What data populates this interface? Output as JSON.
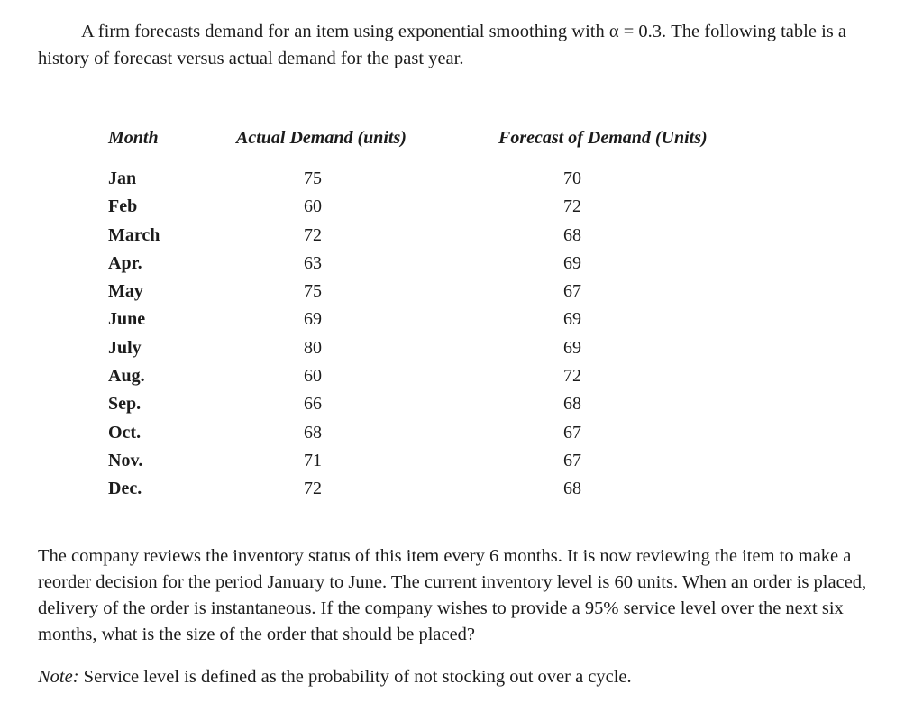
{
  "document": {
    "intro_text": "A firm forecasts demand for an item using exponential smoothing with α = 0.3. The following table is a history of forecast versus actual demand for the past year.",
    "table": {
      "headers": [
        "Month",
        "Actual Demand (units)",
        "Forecast of Demand (Units)"
      ],
      "rows": [
        {
          "month": "Jan",
          "actual": "75",
          "forecast": "70"
        },
        {
          "month": "Feb",
          "actual": "60",
          "forecast": "72"
        },
        {
          "month": "March",
          "actual": "72",
          "forecast": "68"
        },
        {
          "month": "Apr.",
          "actual": "63",
          "forecast": "69"
        },
        {
          "month": "May",
          "actual": "75",
          "forecast": "67"
        },
        {
          "month": "June",
          "actual": "69",
          "forecast": "69"
        },
        {
          "month": "July",
          "actual": "80",
          "forecast": "69"
        },
        {
          "month": "Aug.",
          "actual": "60",
          "forecast": "72"
        },
        {
          "month": "Sep.",
          "actual": "66",
          "forecast": "68"
        },
        {
          "month": "Oct.",
          "actual": "68",
          "forecast": "67"
        },
        {
          "month": "Nov.",
          "actual": "71",
          "forecast": "67"
        },
        {
          "month": "Dec.",
          "actual": "72",
          "forecast": "68"
        }
      ]
    },
    "question_text": "The company reviews the inventory status of this item every 6 months. It is now reviewing the item to make a reorder decision for the period January to June. The current inventory level is 60 units. When an order is placed, delivery of the order is instantaneous. If the company wishes to provide a 95% service level over the next six months, what is the size of the order that should be placed?",
    "note": {
      "label": "Note:",
      "text": " Service level is defined as the probability of not stocking out over a cycle."
    },
    "colors": {
      "page_background": "#ffffff",
      "text": "#1c1c1c"
    }
  }
}
